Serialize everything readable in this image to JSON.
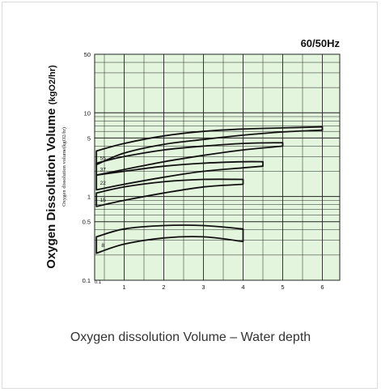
{
  "chart_data": {
    "type": "line",
    "title": "",
    "frequency_label": "60/50Hz",
    "ylabel_main": "Oxygen Dissolution Volume",
    "ylabel_main_unit": "(kgO2/hr)",
    "ylabel_sub": "Oxygen dissolution volume(kgO2/hr)",
    "xlabel": "",
    "caption": "Oxygen dissolution Volume – Water depth",
    "y_scale": "log",
    "ylim": [
      0.1,
      50
    ],
    "xlim": [
      0,
      6.5
    ],
    "grid": true,
    "y_ticks": [
      "50",
      "10",
      "5",
      "1",
      "0.5",
      "0.1"
    ],
    "x_ticks": [
      "1",
      "2",
      "3",
      "4",
      "5",
      "6"
    ],
    "x_origin_label": "0.1",
    "series": [
      {
        "name": "55",
        "x": [
          0.3,
          1,
          2,
          3,
          4,
          5,
          6.0
        ],
        "y_upper": [
          3.5,
          4.3,
          5.3,
          6.0,
          6.4,
          6.6,
          6.8
        ],
        "y_lower": [
          2.4,
          3.3,
          4.2,
          4.8,
          5.4,
          5.9,
          6.2
        ]
      },
      {
        "name": "37",
        "x": [
          0.3,
          1,
          2,
          3,
          4,
          5.0
        ],
        "y_upper": [
          2.5,
          3.0,
          3.6,
          4.0,
          4.3,
          4.4
        ],
        "y_lower": [
          1.8,
          2.1,
          2.6,
          3.1,
          3.6,
          4.0
        ]
      },
      {
        "name": "22",
        "x": [
          0.3,
          1,
          2,
          3,
          4,
          4.5
        ],
        "y_upper": [
          1.8,
          2.0,
          2.3,
          2.5,
          2.6,
          2.6
        ],
        "y_lower": [
          1.2,
          1.4,
          1.7,
          2.0,
          2.2,
          2.3
        ]
      },
      {
        "name": "15",
        "x": [
          0.3,
          1,
          2,
          3,
          4.0
        ],
        "y_upper": [
          1.1,
          1.3,
          1.5,
          1.6,
          1.6
        ],
        "y_lower": [
          0.76,
          0.9,
          1.1,
          1.3,
          1.4
        ]
      },
      {
        "name": "8",
        "x": [
          0.3,
          1,
          2,
          3,
          4.0
        ],
        "y_upper": [
          0.33,
          0.41,
          0.45,
          0.45,
          0.41
        ],
        "y_lower": [
          0.21,
          0.27,
          0.32,
          0.33,
          0.29
        ]
      }
    ]
  },
  "colors": {
    "plot_bg": "#e4f5dd",
    "grid": "#222222",
    "curve": "#111111",
    "text": "#111111",
    "caption": "#333333"
  }
}
